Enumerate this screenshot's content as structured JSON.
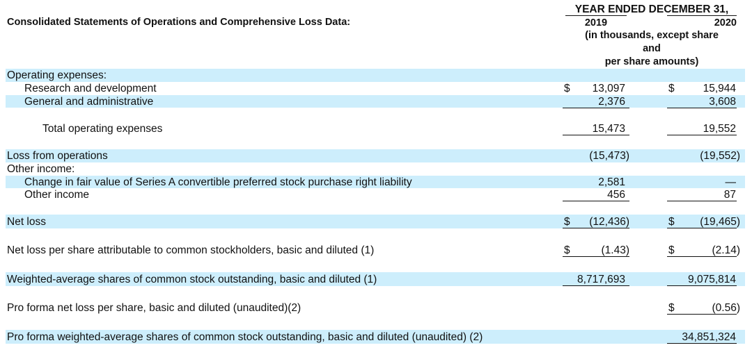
{
  "header": {
    "title": "Consolidated Statements of Operations and Comprehensive Loss Data:",
    "period": "YEAR ENDED DECEMBER 31,",
    "col_2019": "2019",
    "col_2020": "2020",
    "units_line1": "(in thousands, except share",
    "units_line2": "and",
    "units_line3": "per share amounts)"
  },
  "rows": {
    "opex_heading": "Operating expenses:",
    "rd": {
      "label": "Research and development",
      "cur": "$",
      "v2019": "13,097",
      "v2020": "15,944"
    },
    "ga": {
      "label": "General and administrative",
      "v2019": "2,376",
      "v2020": "3,608"
    },
    "total_opex": {
      "label": "Total operating expenses",
      "v2019": "15,473",
      "v2020": "19,552"
    },
    "loss_ops": {
      "label": "Loss from operations",
      "v2019": "(15,473)",
      "v2020": "(19,552)"
    },
    "other_income_heading": "Other income:",
    "fair_value": {
      "label": "Change in fair value of Series A convertible preferred stock purchase right liability",
      "v2019": "2,581",
      "v2020": "—"
    },
    "other_income": {
      "label": "Other income",
      "v2019": "456",
      "v2020": "87"
    },
    "net_loss": {
      "label": "Net loss",
      "cur": "$",
      "v2019": "(12,436)",
      "v2020": "(19,465)"
    },
    "nlps": {
      "label": "Net loss per share attributable to common stockholders, basic and diluted (1)",
      "cur": "$",
      "v2019": "(1.43)",
      "v2020": "(2.14)"
    },
    "wavg": {
      "label": "Weighted-average shares of common stock outstanding, basic and diluted (1)",
      "v2019": "8,717,693",
      "v2020": "9,075,814"
    },
    "pf_nlps": {
      "label": "Pro forma net loss per share, basic and diluted (unaudited)(2)",
      "cur": "$",
      "v2020": "(0.56)"
    },
    "pf_wavg": {
      "label": "Pro forma weighted-average shares of common stock outstanding, basic and diluted (unaudited) (2)",
      "v2020": "34,851,324"
    }
  }
}
